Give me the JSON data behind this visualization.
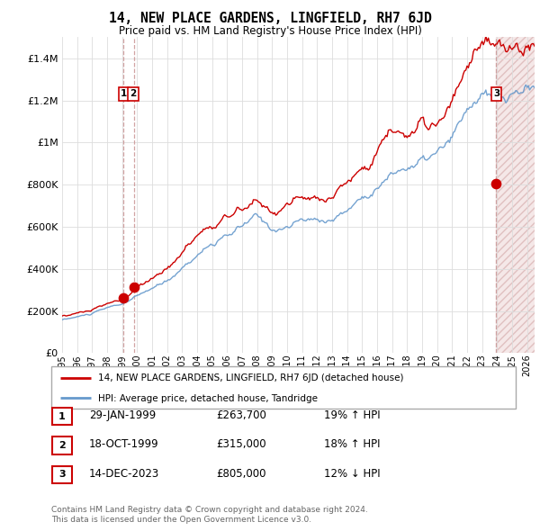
{
  "title": "14, NEW PLACE GARDENS, LINGFIELD, RH7 6JD",
  "subtitle": "Price paid vs. HM Land Registry's House Price Index (HPI)",
  "legend_line1": "14, NEW PLACE GARDENS, LINGFIELD, RH7 6JD (detached house)",
  "legend_line2": "HPI: Average price, detached house, Tandridge",
  "transactions": [
    {
      "num": 1,
      "date": "29-JAN-1999",
      "price": 263700,
      "pct": "19%",
      "dir": "↑",
      "year": 1999.08
    },
    {
      "num": 2,
      "date": "18-OCT-1999",
      "price": 315000,
      "pct": "18%",
      "dir": "↑",
      "year": 1999.8
    },
    {
      "num": 3,
      "date": "14-DEC-2023",
      "price": 805000,
      "pct": "12%",
      "dir": "↓",
      "year": 2023.95
    }
  ],
  "footnote1": "Contains HM Land Registry data © Crown copyright and database right 2024.",
  "footnote2": "This data is licensed under the Open Government Licence v3.0.",
  "red_color": "#cc0000",
  "blue_color": "#6699cc",
  "dashed_color": "#cc9999",
  "ylim": [
    0,
    1500000
  ],
  "xlim_start": 1995.0,
  "xlim_end": 2026.5,
  "yticks": [
    0,
    200000,
    400000,
    600000,
    800000,
    1000000,
    1200000,
    1400000
  ],
  "xtick_years": [
    1995,
    1996,
    1997,
    1998,
    1999,
    2000,
    2001,
    2002,
    2003,
    2004,
    2005,
    2006,
    2007,
    2008,
    2009,
    2010,
    2011,
    2012,
    2013,
    2014,
    2015,
    2016,
    2017,
    2018,
    2019,
    2020,
    2021,
    2022,
    2023,
    2024,
    2025,
    2026
  ]
}
